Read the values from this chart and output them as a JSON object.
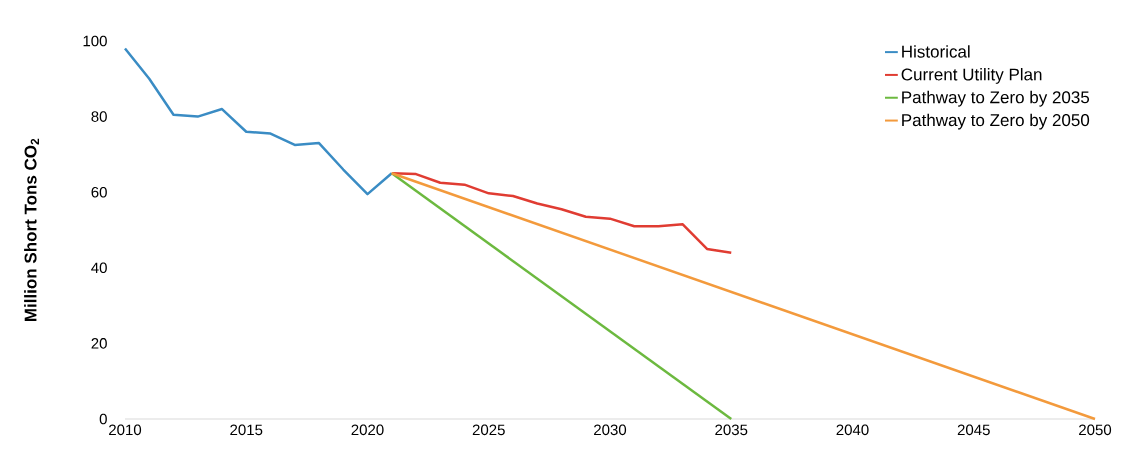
{
  "chart_data": {
    "type": "line",
    "ylabel": "Million Short Tons CO$_{2}$",
    "xlim": [
      2010,
      2050
    ],
    "xticks": [
      2010,
      2015,
      2020,
      2025,
      2030,
      2035,
      2040,
      2045,
      2050
    ],
    "ylim": [
      0,
      100
    ],
    "yticks": [
      0,
      20,
      40,
      60,
      80,
      100
    ],
    "grid": false,
    "legend": "top right",
    "series": [
      {
        "name": "Historical",
        "color": "#3a8cc4",
        "x": [
          2010,
          2011,
          2012,
          2013,
          2014,
          2015,
          2016,
          2017,
          2018,
          2019,
          2020,
          2021
        ],
        "values": [
          98,
          90,
          80.5,
          80,
          82,
          76,
          75.5,
          72.5,
          73,
          66,
          59.5,
          65
        ]
      },
      {
        "name": "Current Utility Plan",
        "color": "#e03c32",
        "x": [
          2021,
          2022,
          2023,
          2024,
          2025,
          2026,
          2027,
          2028,
          2029,
          2030,
          2031,
          2032,
          2033,
          2034,
          2035
        ],
        "values": [
          65,
          64.8,
          62.5,
          62,
          59.7,
          59,
          57,
          55.5,
          53.5,
          53,
          51,
          51,
          51.5,
          45,
          44
        ]
      },
      {
        "name": "Pathway to Zero by 2035",
        "color": "#6cb93f",
        "x": [
          2021,
          2035
        ],
        "values": [
          65,
          0
        ]
      },
      {
        "name": "Pathway to Zero by 2050",
        "color": "#f39a3c",
        "x": [
          2021,
          2050
        ],
        "values": [
          65,
          0
        ]
      }
    ]
  }
}
